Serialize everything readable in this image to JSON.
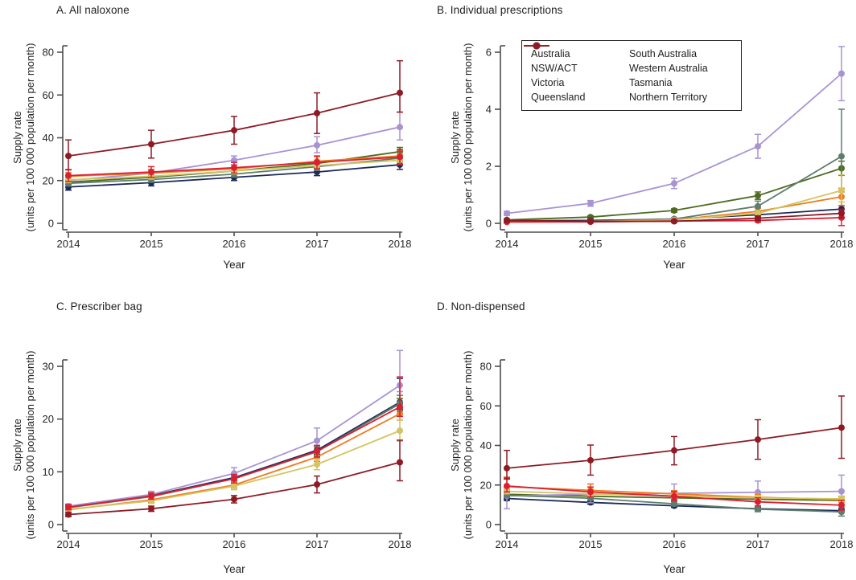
{
  "figure": {
    "background": "#ffffff",
    "axis_color": "#4d4d4f",
    "text_color": "#262626",
    "xlabel": "Year",
    "ylabel_line1": "Supply rate",
    "ylabel_line2": "(units per 100 000 population per month)"
  },
  "legend": {
    "position": "top-right-of-panel-B",
    "columns": [
      [
        "Australia",
        "NSW/ACT",
        "Victoria",
        "Queensland"
      ],
      [
        "South Australia",
        "Western Australia",
        "Tasmania",
        "Northern Territory"
      ]
    ]
  },
  "series_colors": {
    "Australia": "#4e6b1f",
    "NSW/ACT": "#1c2a58",
    "Victoria": "#a893d2",
    "Queensland": "#ef7c21",
    "South Australia": "#5e7d6d",
    "Western Australia": "#d3c562",
    "Tasmania": "#da1f33",
    "Northern Territory": "#8e1b24"
  },
  "chart_data": [
    {
      "id": "A",
      "type": "line",
      "title": "A. All naloxone",
      "x": [
        2014,
        2015,
        2016,
        2017,
        2018
      ],
      "xlabel": "Year",
      "ylabel": "Supply rate (units per 100 000 population per month)",
      "ylim": [
        0,
        80
      ],
      "yticks": [
        0,
        20,
        40,
        60,
        80
      ],
      "grid": false,
      "series": [
        {
          "name": "Australia",
          "values": [
            19.3,
            21.5,
            24.5,
            28.0,
            33.5
          ],
          "ci_lo": [
            18.3,
            20.5,
            23.5,
            26.8,
            31.8
          ],
          "ci_hi": [
            20.3,
            22.5,
            25.5,
            29.2,
            35.5
          ]
        },
        {
          "name": "NSW/ACT",
          "values": [
            17.0,
            19.0,
            21.5,
            24.0,
            27.4
          ],
          "ci_lo": [
            15.5,
            17.5,
            20.0,
            22.3,
            25.2
          ],
          "ci_hi": [
            18.5,
            20.5,
            23.0,
            25.7,
            29.6
          ]
        },
        {
          "name": "Victoria",
          "values": [
            20.0,
            23.5,
            29.5,
            36.5,
            45.0
          ],
          "ci_lo": [
            18.7,
            22.0,
            27.5,
            33.0,
            39.0
          ],
          "ci_hi": [
            21.3,
            25.0,
            31.5,
            40.5,
            52.0
          ]
        },
        {
          "name": "Queensland",
          "values": [
            22.0,
            23.5,
            25.5,
            29.0,
            31.5
          ],
          "ci_lo": [
            20.3,
            21.8,
            23.8,
            26.8,
            28.8
          ],
          "ci_hi": [
            23.7,
            25.2,
            27.2,
            31.2,
            34.2
          ]
        },
        {
          "name": "South Australia",
          "values": [
            18.7,
            20.5,
            23.0,
            26.5,
            30.5
          ],
          "ci_lo": [
            17.4,
            19.2,
            21.6,
            24.7,
            27.7
          ],
          "ci_hi": [
            20.0,
            21.8,
            24.4,
            28.3,
            33.3
          ]
        },
        {
          "name": "Western Australia",
          "values": [
            20.3,
            22.0,
            24.5,
            27.0,
            29.5
          ],
          "ci_lo": [
            19.0,
            20.7,
            23.1,
            25.4,
            27.5
          ],
          "ci_hi": [
            21.6,
            23.3,
            25.9,
            28.6,
            31.5
          ]
        },
        {
          "name": "Tasmania",
          "values": [
            22.3,
            24.0,
            26.0,
            28.5,
            31.0
          ],
          "ci_lo": [
            19.5,
            21.5,
            23.5,
            25.5,
            27.5
          ],
          "ci_hi": [
            25.1,
            26.5,
            28.5,
            31.5,
            34.5
          ]
        },
        {
          "name": "Northern Territory",
          "values": [
            31.5,
            37.0,
            43.5,
            51.5,
            61.0
          ],
          "ci_lo": [
            25.0,
            30.5,
            37.0,
            42.0,
            52.0
          ],
          "ci_hi": [
            39.0,
            43.5,
            50.0,
            61.0,
            76.0
          ]
        }
      ]
    },
    {
      "id": "B",
      "type": "line",
      "title": "B. Individual prescriptions",
      "x": [
        2014,
        2015,
        2016,
        2017,
        2018
      ],
      "xlabel": "Year",
      "ylabel": "Supply rate (units per 100 000 population per month)",
      "ylim": [
        0,
        6
      ],
      "yticks": [
        0,
        2,
        4,
        6
      ],
      "grid": false,
      "series": [
        {
          "name": "Australia",
          "values": [
            0.12,
            0.22,
            0.45,
            0.97,
            1.93
          ],
          "ci_lo": [
            0.09,
            0.18,
            0.39,
            0.84,
            1.68
          ],
          "ci_hi": [
            0.15,
            0.26,
            0.51,
            1.1,
            2.18
          ]
        },
        {
          "name": "NSW/ACT",
          "values": [
            0.09,
            0.1,
            0.15,
            0.3,
            0.5
          ],
          "ci_lo": [
            0.06,
            0.07,
            0.11,
            0.23,
            0.38
          ],
          "ci_hi": [
            0.12,
            0.13,
            0.19,
            0.37,
            0.62
          ]
        },
        {
          "name": "Victoria",
          "values": [
            0.35,
            0.7,
            1.4,
            2.7,
            5.25
          ],
          "ci_lo": [
            0.28,
            0.6,
            1.22,
            2.28,
            4.3
          ],
          "ci_hi": [
            0.42,
            0.8,
            1.58,
            3.12,
            6.2
          ]
        },
        {
          "name": "Queensland",
          "values": [
            0.06,
            0.07,
            0.12,
            0.42,
            0.93
          ],
          "ci_lo": [
            0.04,
            0.05,
            0.08,
            0.31,
            0.63
          ],
          "ci_hi": [
            0.08,
            0.09,
            0.16,
            0.53,
            1.23
          ]
        },
        {
          "name": "South Australia",
          "values": [
            0.05,
            0.08,
            0.15,
            0.6,
            2.35
          ],
          "ci_lo": [
            0.03,
            0.05,
            0.1,
            0.42,
            1.1
          ],
          "ci_hi": [
            0.07,
            0.11,
            0.2,
            0.78,
            4.0
          ]
        },
        {
          "name": "Western Australia",
          "values": [
            0.04,
            0.06,
            0.12,
            0.35,
            1.15
          ],
          "ci_lo": [
            0.02,
            0.04,
            0.08,
            0.25,
            0.75
          ],
          "ci_hi": [
            0.06,
            0.08,
            0.16,
            0.45,
            1.7
          ]
        },
        {
          "name": "Tasmania",
          "values": [
            0.05,
            0.05,
            0.08,
            0.1,
            0.2
          ],
          "ci_lo": [
            0.02,
            0.02,
            0.04,
            0.04,
            -0.08
          ],
          "ci_hi": [
            0.08,
            0.08,
            0.12,
            0.16,
            0.48
          ]
        },
        {
          "name": "Northern Territory",
          "values": [
            0.1,
            0.07,
            0.07,
            0.18,
            0.35
          ],
          "ci_lo": [
            0.05,
            0.03,
            0.03,
            0.1,
            0.2
          ],
          "ci_hi": [
            0.15,
            0.11,
            0.11,
            0.26,
            0.5
          ]
        }
      ]
    },
    {
      "id": "C",
      "type": "line",
      "title": "C. Prescriber bag",
      "x": [
        2014,
        2015,
        2016,
        2017,
        2018
      ],
      "xlabel": "Year",
      "ylabel": "Supply rate (units per 100 000 population per month)",
      "ylim": [
        0,
        30
      ],
      "yticks": [
        0,
        10,
        20,
        30
      ],
      "grid": false,
      "series": [
        {
          "name": "Australia",
          "values": [
            3.3,
            5.4,
            8.8,
            14.0,
            22.9
          ],
          "ci_lo": [
            2.9,
            5.0,
            8.2,
            13.3,
            21.9
          ],
          "ci_hi": [
            3.7,
            5.8,
            9.4,
            14.7,
            23.9
          ]
        },
        {
          "name": "NSW/ACT",
          "values": [
            3.4,
            5.5,
            8.9,
            14.1,
            23.2
          ],
          "ci_lo": [
            3.0,
            5.0,
            8.2,
            13.2,
            21.8
          ],
          "ci_hi": [
            3.8,
            6.0,
            9.6,
            15.0,
            27.7
          ]
        },
        {
          "name": "Victoria",
          "values": [
            3.5,
            5.7,
            9.7,
            15.9,
            26.4
          ],
          "ci_lo": [
            3.1,
            5.2,
            8.9,
            13.8,
            25.2
          ],
          "ci_hi": [
            3.9,
            6.3,
            10.8,
            18.3,
            33.0
          ]
        },
        {
          "name": "Queensland",
          "values": [
            2.8,
            4.7,
            7.5,
            12.8,
            21.0
          ],
          "ci_lo": [
            2.4,
            4.2,
            6.9,
            12.0,
            19.8
          ],
          "ci_hi": [
            3.2,
            5.2,
            8.1,
            13.6,
            22.2
          ]
        },
        {
          "name": "South Australia",
          "values": [
            3.2,
            5.3,
            8.7,
            13.8,
            23.0
          ],
          "ci_lo": [
            2.8,
            4.8,
            8.0,
            12.9,
            21.5
          ],
          "ci_hi": [
            3.6,
            5.8,
            9.4,
            14.7,
            24.5
          ]
        },
        {
          "name": "Western Australia",
          "values": [
            2.9,
            4.5,
            7.3,
            11.4,
            17.8
          ],
          "ci_lo": [
            2.5,
            4.0,
            6.6,
            10.4,
            15.8
          ],
          "ci_hi": [
            3.3,
            5.0,
            8.0,
            12.4,
            19.8
          ]
        },
        {
          "name": "Tasmania",
          "values": [
            3.3,
            5.4,
            8.7,
            13.9,
            22.3
          ],
          "ci_lo": [
            2.8,
            4.8,
            7.9,
            12.8,
            20.5
          ],
          "ci_hi": [
            3.8,
            6.0,
            9.5,
            15.0,
            28.0
          ]
        },
        {
          "name": "Northern Territory",
          "values": [
            1.9,
            3.0,
            4.8,
            7.6,
            11.8
          ],
          "ci_lo": [
            1.5,
            2.5,
            4.1,
            6.0,
            8.3
          ],
          "ci_hi": [
            2.3,
            3.5,
            5.5,
            9.2,
            16.0
          ]
        }
      ]
    },
    {
      "id": "D",
      "type": "line",
      "title": "D. Non-dispensed",
      "x": [
        2014,
        2015,
        2016,
        2017,
        2018
      ],
      "xlabel": "Year",
      "ylabel": "Supply rate (units per 100 000 population per month)",
      "ylim": [
        0,
        80
      ],
      "yticks": [
        0,
        20,
        40,
        60,
        80
      ],
      "grid": false,
      "series": [
        {
          "name": "Australia",
          "values": [
            15.3,
            14.3,
            13.5,
            12.8,
            12.2
          ],
          "ci_lo": [
            14.5,
            13.6,
            12.8,
            12.1,
            11.4
          ],
          "ci_hi": [
            16.1,
            15.0,
            14.2,
            13.5,
            13.0
          ]
        },
        {
          "name": "NSW/ACT",
          "values": [
            13.2,
            11.2,
            9.5,
            8.0,
            7.0
          ],
          "ci_lo": [
            12.2,
            10.3,
            8.7,
            7.2,
            6.2
          ],
          "ci_hi": [
            14.2,
            12.1,
            10.3,
            8.8,
            7.8
          ]
        },
        {
          "name": "Victoria",
          "values": [
            14.5,
            15.3,
            15.8,
            16.3,
            16.8
          ],
          "ci_lo": [
            8.0,
            11.0,
            12.0,
            12.0,
            12.0
          ],
          "ci_hi": [
            24.0,
            20.5,
            20.5,
            22.0,
            25.0
          ]
        },
        {
          "name": "Queensland",
          "values": [
            19.2,
            17.3,
            15.5,
            13.8,
            12.6
          ],
          "ci_lo": [
            17.5,
            15.8,
            14.2,
            12.5,
            11.2
          ],
          "ci_hi": [
            24.0,
            20.5,
            17.2,
            15.1,
            14.0
          ]
        },
        {
          "name": "South Australia",
          "values": [
            14.8,
            13.3,
            10.5,
            7.8,
            6.4
          ],
          "ci_lo": [
            13.8,
            12.3,
            9.5,
            6.5,
            4.3
          ],
          "ci_hi": [
            15.8,
            14.3,
            11.5,
            9.1,
            8.4
          ]
        },
        {
          "name": "Western Australia",
          "values": [
            16.8,
            15.5,
            14.5,
            13.5,
            13.0
          ],
          "ci_lo": [
            15.6,
            14.4,
            13.4,
            12.3,
            11.6
          ],
          "ci_hi": [
            18.0,
            16.6,
            15.6,
            14.7,
            14.4
          ]
        },
        {
          "name": "Tasmania",
          "values": [
            19.5,
            16.5,
            14.3,
            11.5,
            9.8
          ],
          "ci_lo": [
            16.5,
            14.0,
            12.0,
            9.5,
            7.3
          ],
          "ci_hi": [
            23.5,
            19.0,
            16.6,
            13.5,
            12.3
          ]
        },
        {
          "name": "Northern Territory",
          "values": [
            28.5,
            32.5,
            37.5,
            43.0,
            49.0
          ],
          "ci_lo": [
            23.0,
            25.0,
            30.2,
            33.0,
            33.5
          ],
          "ci_hi": [
            37.5,
            40.2,
            44.5,
            53.0,
            65.0
          ]
        }
      ]
    }
  ]
}
